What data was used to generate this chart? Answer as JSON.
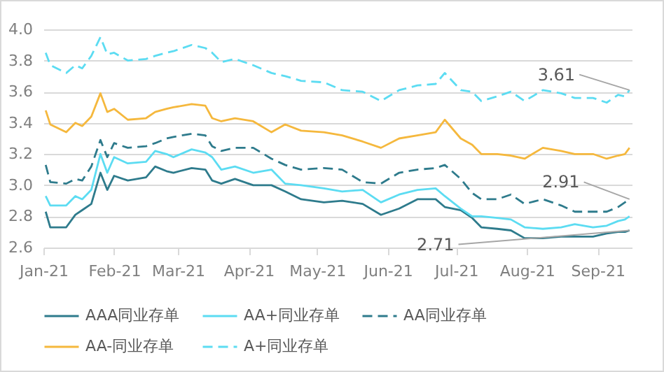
{
  "chart_data": {
    "type": "line",
    "x": [
      "2021-01-02",
      "2021-01-04",
      "2021-01-11",
      "2021-01-15",
      "2021-01-18",
      "2021-01-22",
      "2021-01-26",
      "2021-01-29",
      "2021-02-01",
      "2021-02-07",
      "2021-02-15",
      "2021-02-19",
      "2021-02-24",
      "2021-02-27",
      "2021-03-07",
      "2021-03-13",
      "2021-03-16",
      "2021-03-20",
      "2021-03-26",
      "2021-04-03",
      "2021-04-11",
      "2021-04-17",
      "2021-04-24",
      "2021-05-04",
      "2021-05-12",
      "2021-05-21",
      "2021-05-29",
      "2021-06-06",
      "2021-06-14",
      "2021-06-22",
      "2021-06-26",
      "2021-07-03",
      "2021-07-08",
      "2021-07-12",
      "2021-07-19",
      "2021-07-25",
      "2021-07-31",
      "2021-08-08",
      "2021-08-16",
      "2021-08-22",
      "2021-08-30",
      "2021-09-05",
      "2021-09-10",
      "2021-09-13",
      "2021-09-15"
    ],
    "series": [
      {
        "name": "AAA同业存单",
        "color": "#2e7b8c",
        "line_style": "solid",
        "values": [
          2.83,
          2.73,
          2.73,
          2.81,
          2.84,
          2.88,
          3.08,
          2.97,
          3.06,
          3.03,
          3.05,
          3.12,
          3.09,
          3.08,
          3.11,
          3.1,
          3.03,
          3.01,
          3.04,
          3.0,
          3.0,
          2.96,
          2.91,
          2.89,
          2.9,
          2.88,
          2.81,
          2.85,
          2.91,
          2.91,
          2.86,
          2.84,
          2.79,
          2.73,
          2.72,
          2.71,
          2.66,
          2.66,
          2.67,
          2.67,
          2.67,
          2.69,
          2.7,
          2.7,
          2.71
        ]
      },
      {
        "name": "AA+同业存单",
        "color": "#5cdcf2",
        "line_style": "solid",
        "values": [
          2.93,
          2.87,
          2.87,
          2.93,
          2.91,
          2.97,
          3.2,
          3.08,
          3.18,
          3.14,
          3.15,
          3.22,
          3.2,
          3.18,
          3.23,
          3.21,
          3.18,
          3.1,
          3.12,
          3.08,
          3.1,
          3.01,
          3.0,
          2.98,
          2.96,
          2.97,
          2.89,
          2.94,
          2.97,
          2.98,
          2.93,
          2.85,
          2.8,
          2.8,
          2.79,
          2.78,
          2.73,
          2.72,
          2.73,
          2.75,
          2.73,
          2.74,
          2.77,
          2.78,
          2.8
        ]
      },
      {
        "name": "AA同业存单",
        "color": "#2e7b8c",
        "line_style": "dashed",
        "values": [
          3.13,
          3.02,
          3.01,
          3.04,
          3.03,
          3.12,
          3.29,
          3.18,
          3.27,
          3.24,
          3.25,
          3.27,
          3.3,
          3.31,
          3.33,
          3.32,
          3.25,
          3.22,
          3.24,
          3.24,
          3.17,
          3.13,
          3.1,
          3.11,
          3.1,
          3.02,
          3.01,
          3.08,
          3.1,
          3.11,
          3.13,
          3.04,
          2.95,
          2.91,
          2.91,
          2.94,
          2.88,
          2.91,
          2.87,
          2.83,
          2.83,
          2.83,
          2.86,
          2.89,
          2.91
        ]
      },
      {
        "name": "AA-同业存单",
        "color": "#f5b83d",
        "line_style": "solid",
        "values": [
          3.48,
          3.39,
          3.34,
          3.4,
          3.38,
          3.44,
          3.59,
          3.47,
          3.49,
          3.42,
          3.43,
          3.47,
          3.49,
          3.5,
          3.52,
          3.51,
          3.43,
          3.41,
          3.43,
          3.41,
          3.34,
          3.39,
          3.35,
          3.34,
          3.32,
          3.28,
          3.24,
          3.3,
          3.32,
          3.34,
          3.42,
          3.3,
          3.26,
          3.2,
          3.2,
          3.19,
          3.17,
          3.24,
          3.22,
          3.2,
          3.2,
          3.17,
          3.19,
          3.2,
          3.24
        ]
      },
      {
        "name": "A+同业存单",
        "color": "#5cdcf2",
        "line_style": "dashed",
        "values": [
          3.85,
          3.77,
          3.72,
          3.77,
          3.75,
          3.83,
          3.95,
          3.84,
          3.85,
          3.8,
          3.81,
          3.83,
          3.85,
          3.86,
          3.9,
          3.88,
          3.85,
          3.79,
          3.81,
          3.77,
          3.72,
          3.7,
          3.67,
          3.66,
          3.61,
          3.6,
          3.54,
          3.61,
          3.64,
          3.65,
          3.72,
          3.61,
          3.6,
          3.54,
          3.57,
          3.6,
          3.54,
          3.61,
          3.59,
          3.56,
          3.56,
          3.53,
          3.58,
          3.57,
          3.61
        ]
      }
    ],
    "xlim": [
      "2021-01-01",
      "2021-09-16"
    ],
    "xticks": [
      {
        "value": "2021-01-01",
        "label": "Jan-21"
      },
      {
        "value": "2021-02-01",
        "label": "Feb-21"
      },
      {
        "value": "2021-03-01",
        "label": "Mar-21"
      },
      {
        "value": "2021-04-01",
        "label": "Apr-21"
      },
      {
        "value": "2021-05-01",
        "label": "May-21"
      },
      {
        "value": "2021-06-01",
        "label": "Jun-21"
      },
      {
        "value": "2021-07-01",
        "label": "Jul-21"
      },
      {
        "value": "2021-08-01",
        "label": "Aug-21"
      },
      {
        "value": "2021-09-01",
        "label": "Sep-21"
      }
    ],
    "ylim": [
      2.6,
      4.0
    ],
    "yticks": [
      2.6,
      2.8,
      {
        "value": 3.0,
        "label": "3.0"
      },
      3.2,
      3.4,
      3.6,
      3.8,
      {
        "value": 4.0,
        "label": "4.0"
      }
    ],
    "grid": "y",
    "legend": "bottom",
    "marker": "none",
    "annotations": [
      {
        "text": "3.61",
        "x": "2021-09-15",
        "y": 3.61
      },
      {
        "text": "2.91",
        "x": "2021-09-15",
        "y": 2.91
      },
      {
        "text": "2.71",
        "x": "2021-09-15",
        "y": 2.71
      }
    ]
  }
}
